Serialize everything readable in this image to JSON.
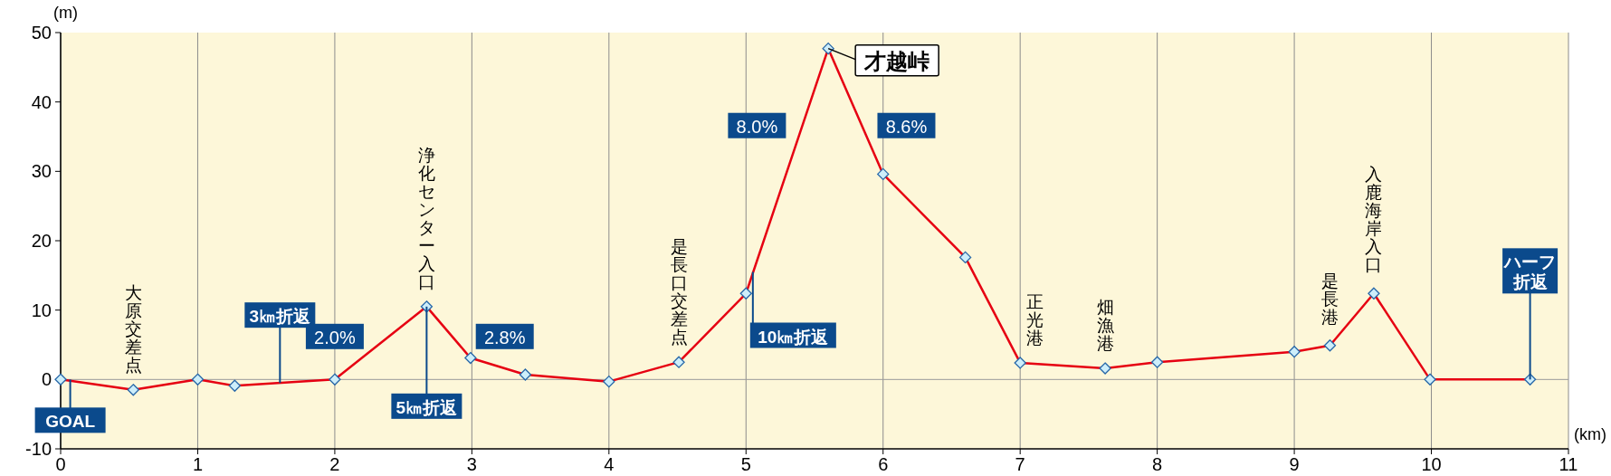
{
  "chart_data": {
    "type": "line",
    "ylabel": "(m)",
    "xlabel": "(km)",
    "x": [
      0,
      0.53,
      1.0,
      1.27,
      2.0,
      2.67,
      2.99,
      3.39,
      4.0,
      4.51,
      5.0,
      5.6,
      6.0,
      6.6,
      7.0,
      7.62,
      8.0,
      9.0,
      9.26,
      9.58,
      9.99,
      10.72
    ],
    "series": [
      {
        "color": "#e60012",
        "values": [
          0,
          -1.5,
          0,
          -0.9,
          0,
          10.5,
          3.1,
          0.7,
          -0.3,
          2.5,
          12.4,
          47.7,
          29.6,
          17.6,
          2.4,
          1.6,
          2.5,
          4.0,
          4.9,
          12.4,
          0,
          0
        ]
      }
    ],
    "xlim": [
      0,
      11
    ],
    "xticks": [
      0,
      1,
      2,
      3,
      4,
      5,
      6,
      7,
      8,
      9,
      10,
      11
    ],
    "ylim": [
      -10,
      50
    ],
    "yticks": [
      -10,
      0,
      10,
      20,
      30,
      40,
      50
    ],
    "grid": "x",
    "marker": "diamond",
    "ref_lines": [
      {
        "axis": "y",
        "value": 0,
        "color": "#9a9a9a"
      }
    ],
    "annotations": [
      {
        "text": "大原交差点",
        "x": 0.53,
        "y": -1.5
      },
      {
        "text": "浄化センター入口",
        "x": 2.67,
        "y": 10.5
      },
      {
        "text": "是長口交差点",
        "x": 4.51,
        "y": 2.5
      },
      {
        "text": "正光港",
        "x": 7.0,
        "y": 2.4
      },
      {
        "text": "畑漁港",
        "x": 7.62,
        "y": 1.6
      },
      {
        "text": "是長港",
        "x": 9.26,
        "y": 4.9
      },
      {
        "text": "入鹿海岸入口",
        "x": 9.58,
        "y": 12.4
      },
      {
        "text": "才越峠",
        "x": 5.6,
        "y": 47.7
      },
      {
        "text": "GOAL",
        "x": 0.07,
        "y": 0
      },
      {
        "text": "3㎞折返",
        "x": 1.6,
        "y": -0.5
      },
      {
        "text": "5㎞折返",
        "x": 2.67,
        "y": 10.5
      },
      {
        "text": "10㎞折返",
        "x": 5.05,
        "y": 15.5
      },
      {
        "text": "ハーフ折返",
        "x": 10.72,
        "y": 0
      },
      "2.0%",
      "2.8%",
      "8.0%",
      "8.6%"
    ]
  }
}
